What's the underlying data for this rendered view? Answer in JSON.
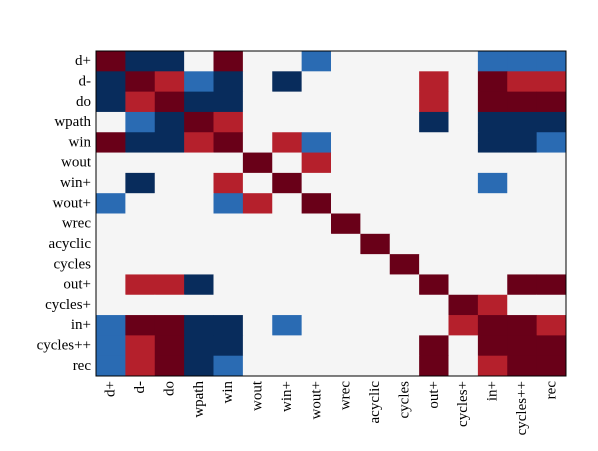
{
  "chart_data": {
    "type": "heatmap",
    "title": "",
    "xlabel": "",
    "ylabel": "",
    "labels": [
      "d+",
      "d-",
      "do",
      "wpath",
      "win",
      "wout",
      "win+",
      "wout+",
      "wrec",
      "acyclic",
      "cycles",
      "out+",
      "cycles+",
      "in+",
      "cycles++",
      "rec"
    ],
    "x_tick_labels": [
      "d+",
      "d-",
      "do",
      "wpath",
      "win",
      "wout",
      "win+",
      "wout+",
      "wrec",
      "acyclic",
      "cycles",
      "out+",
      "cycles+",
      "in+",
      "cycles++",
      "rec"
    ],
    "y_tick_labels": [
      "d+",
      "d-",
      "do",
      "wpath",
      "win",
      "wout",
      "win+",
      "wout+",
      "wrec",
      "acyclic",
      "cycles",
      "out+",
      "cycles+",
      "in+",
      "cycles++",
      "rec"
    ],
    "value_scale": "diverging: -2 dark blue, -1 light blue, 0 blank, 1 light red, 2 dark red",
    "colors": {
      "-2": "#082c5c",
      "-1": "#2a6bb3",
      "0": "#f5f5f5",
      "1": "#b5202c",
      "2": "#690018"
    },
    "matrix": [
      [
        2,
        -2,
        -2,
        0,
        2,
        0,
        0,
        -1,
        0,
        0,
        0,
        0,
        0,
        -1,
        -1,
        -1
      ],
      [
        -2,
        2,
        1,
        -1,
        -2,
        0,
        -2,
        0,
        0,
        0,
        0,
        1,
        0,
        2,
        1,
        1
      ],
      [
        -2,
        1,
        2,
        -2,
        -2,
        0,
        0,
        0,
        0,
        0,
        0,
        1,
        0,
        2,
        2,
        2
      ],
      [
        0,
        -1,
        -2,
        2,
        1,
        0,
        0,
        0,
        0,
        0,
        0,
        -2,
        0,
        -2,
        -2,
        -2
      ],
      [
        2,
        -2,
        -2,
        1,
        2,
        0,
        1,
        -1,
        0,
        0,
        0,
        0,
        0,
        -2,
        -2,
        -1
      ],
      [
        0,
        0,
        0,
        0,
        0,
        2,
        0,
        1,
        0,
        0,
        0,
        0,
        0,
        0,
        0,
        0
      ],
      [
        0,
        -2,
        0,
        0,
        1,
        0,
        2,
        0,
        0,
        0,
        0,
        0,
        0,
        -1,
        0,
        0
      ],
      [
        -1,
        0,
        0,
        0,
        -1,
        1,
        0,
        2,
        0,
        0,
        0,
        0,
        0,
        0,
        0,
        0
      ],
      [
        0,
        0,
        0,
        0,
        0,
        0,
        0,
        0,
        2,
        0,
        0,
        0,
        0,
        0,
        0,
        0
      ],
      [
        0,
        0,
        0,
        0,
        0,
        0,
        0,
        0,
        0,
        2,
        0,
        0,
        0,
        0,
        0,
        0
      ],
      [
        0,
        0,
        0,
        0,
        0,
        0,
        0,
        0,
        0,
        0,
        2,
        0,
        0,
        0,
        0,
        0
      ],
      [
        0,
        1,
        1,
        -2,
        0,
        0,
        0,
        0,
        0,
        0,
        0,
        2,
        0,
        0,
        2,
        2
      ],
      [
        0,
        0,
        0,
        0,
        0,
        0,
        0,
        0,
        0,
        0,
        0,
        0,
        2,
        1,
        0,
        0
      ],
      [
        -1,
        2,
        2,
        -2,
        -2,
        0,
        -1,
        0,
        0,
        0,
        0,
        0,
        1,
        2,
        2,
        1
      ],
      [
        -1,
        1,
        2,
        -2,
        -2,
        0,
        0,
        0,
        0,
        0,
        0,
        2,
        0,
        2,
        2,
        2
      ],
      [
        -1,
        1,
        2,
        -2,
        -1,
        0,
        0,
        0,
        0,
        0,
        0,
        2,
        0,
        1,
        2,
        2
      ]
    ],
    "grid": false,
    "legend": "none"
  }
}
